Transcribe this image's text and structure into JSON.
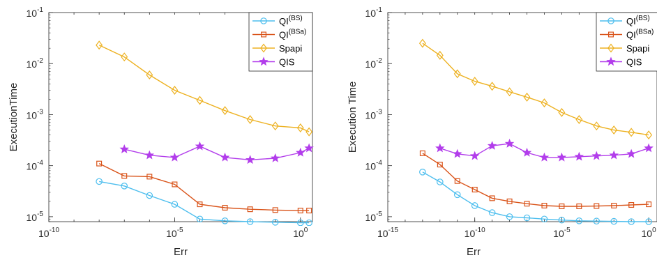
{
  "chart_data": [
    {
      "type": "line",
      "xscale": "log",
      "yscale": "log",
      "xlabel": "Err",
      "ylabel": "ExecutionTime",
      "xlim": [
        1e-10,
        3
      ],
      "ylim": [
        8e-06,
        0.1
      ],
      "xticks": [
        {
          "base": "10",
          "exp": "-10",
          "value": 1e-10
        },
        {
          "base": "10",
          "exp": "-5",
          "value": 1e-05
        },
        {
          "base": "10",
          "exp": "0",
          "value": 1
        }
      ],
      "yticks": [
        {
          "base": "10",
          "exp": "-5",
          "value": 1e-05
        },
        {
          "base": "10",
          "exp": "-4",
          "value": 0.0001
        },
        {
          "base": "10",
          "exp": "-3",
          "value": 0.001
        },
        {
          "base": "10",
          "exp": "-2",
          "value": 0.01
        },
        {
          "base": "10",
          "exp": "-1",
          "value": 0.1
        }
      ],
      "grid": false,
      "legend_location": "top-right",
      "series": [
        {
          "name_base": "QI",
          "name_sup": "(BS)",
          "marker": "circle",
          "color": "#4DBEEE",
          "x": [
            1e-08,
            1e-07,
            1e-06,
            1e-05,
            0.0001,
            0.001,
            0.01,
            0.1,
            1.0,
            2.2
          ],
          "y": [
            4.9e-05,
            4e-05,
            2.6e-05,
            1.75e-05,
            9e-06,
            8.3e-06,
            8e-06,
            7.8e-06,
            7.6e-06,
            7.6e-06
          ]
        },
        {
          "name_base": "QI",
          "name_sup": "(BSa)",
          "marker": "square",
          "color": "#D95319",
          "x": [
            1e-08,
            1e-07,
            1e-06,
            1e-05,
            0.0001,
            0.001,
            0.01,
            0.1,
            1.0,
            2.2
          ],
          "y": [
            0.00011,
            6.3e-05,
            6.1e-05,
            4.3e-05,
            1.75e-05,
            1.5e-05,
            1.4e-05,
            1.35e-05,
            1.32e-05,
            1.32e-05
          ]
        },
        {
          "name_base": "Spapi",
          "name_sup": "",
          "marker": "diamond",
          "color": "#EDB120",
          "x": [
            1e-08,
            1e-07,
            1e-06,
            1e-05,
            0.0001,
            0.001,
            0.01,
            0.1,
            1.0,
            2.2
          ],
          "y": [
            0.023,
            0.0135,
            0.006,
            0.003,
            0.0019,
            0.0012,
            0.0008,
            0.0006,
            0.00055,
            0.00046
          ]
        },
        {
          "name_base": "QIS",
          "name_sup": "",
          "marker": "star",
          "color": "#B23DEB",
          "x": [
            1e-07,
            1e-06,
            1e-05,
            0.0001,
            0.001,
            0.01,
            0.1,
            1.0,
            2.2
          ],
          "y": [
            0.00021,
            0.00016,
            0.000145,
            0.00024,
            0.000145,
            0.00013,
            0.00014,
            0.00018,
            0.00022
          ]
        }
      ]
    },
    {
      "type": "line",
      "xscale": "log",
      "yscale": "log",
      "xlabel": "Err",
      "ylabel": "Execution Time",
      "xlim": [
        1e-15,
        3
      ],
      "ylim": [
        8e-06,
        0.1
      ],
      "xticks": [
        {
          "base": "10",
          "exp": "-15",
          "value": 1e-15
        },
        {
          "base": "10",
          "exp": "-10",
          "value": 1e-10
        },
        {
          "base": "10",
          "exp": "-5",
          "value": 1e-05
        },
        {
          "base": "10",
          "exp": "0",
          "value": 1
        }
      ],
      "yticks": [
        {
          "base": "10",
          "exp": "-5",
          "value": 1e-05
        },
        {
          "base": "10",
          "exp": "-4",
          "value": 0.0001
        },
        {
          "base": "10",
          "exp": "-3",
          "value": 0.001
        },
        {
          "base": "10",
          "exp": "-2",
          "value": 0.01
        },
        {
          "base": "10",
          "exp": "-1",
          "value": 0.1
        }
      ],
      "grid": false,
      "legend_location": "top-right",
      "series": [
        {
          "name_base": "QI",
          "name_sup": "(BS)",
          "marker": "circle",
          "color": "#4DBEEE",
          "x": [
            1e-13,
            1e-12,
            1e-11,
            1e-10,
            1e-09,
            1e-08,
            1e-07,
            1e-06,
            1e-05,
            0.0001,
            0.001,
            0.01,
            0.1,
            1.0
          ],
          "y": [
            7.5e-05,
            4.8e-05,
            2.7e-05,
            1.65e-05,
            1.2e-05,
            1e-05,
            9.5e-06,
            9e-06,
            8.6e-06,
            8.3e-06,
            8.2e-06,
            8.1e-06,
            8e-06,
            8e-06
          ]
        },
        {
          "name_base": "QI",
          "name_sup": "(BSa)",
          "marker": "square",
          "color": "#D95319",
          "x": [
            1e-13,
            1e-12,
            1e-11,
            1e-10,
            1e-09,
            1e-08,
            1e-07,
            1e-06,
            1e-05,
            0.0001,
            0.001,
            0.01,
            0.1,
            1.0
          ],
          "y": [
            0.000175,
            0.000105,
            5e-05,
            3.4e-05,
            2.3e-05,
            2e-05,
            1.8e-05,
            1.65e-05,
            1.6e-05,
            1.6e-05,
            1.62e-05,
            1.65e-05,
            1.7e-05,
            1.75e-05
          ]
        },
        {
          "name_base": "Spapi",
          "name_sup": "",
          "marker": "diamond",
          "color": "#EDB120",
          "x": [
            1e-13,
            1e-12,
            1e-11,
            1e-10,
            1e-09,
            1e-08,
            1e-07,
            1e-06,
            1e-05,
            0.0001,
            0.001,
            0.01,
            0.1,
            1.0
          ],
          "y": [
            0.025,
            0.0145,
            0.0063,
            0.0045,
            0.0036,
            0.0028,
            0.0022,
            0.0017,
            0.0011,
            0.0008,
            0.0006,
            0.0005,
            0.00045,
            0.0004
          ]
        },
        {
          "name_base": "QIS",
          "name_sup": "",
          "marker": "star",
          "color": "#B23DEB",
          "x": [
            1e-12,
            1e-11,
            1e-10,
            1e-09,
            1e-08,
            1e-07,
            1e-06,
            1e-05,
            0.0001,
            0.001,
            0.01,
            0.1,
            1.0
          ],
          "y": [
            0.00022,
            0.00017,
            0.000155,
            0.000245,
            0.00027,
            0.00018,
            0.000145,
            0.000145,
            0.00015,
            0.000155,
            0.00016,
            0.00017,
            0.00022
          ]
        }
      ]
    }
  ]
}
